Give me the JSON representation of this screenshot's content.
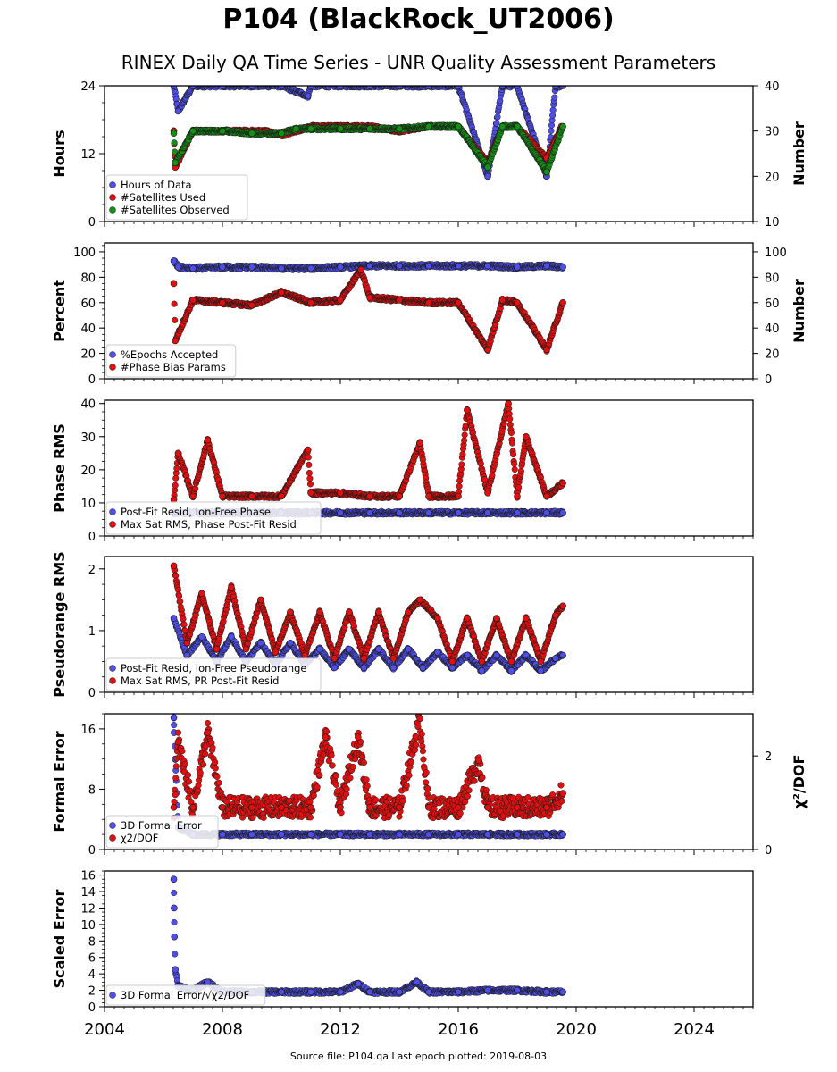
{
  "title": "P104 (BlackRock_UT2006)",
  "subtitle": "RINEX Daily QA Time Series - UNR Quality Assessment Parameters",
  "footer": "Source file: P104.qa Last epoch plotted: 2019-08-03",
  "colors": {
    "blue": "#4f4fe8",
    "red": "#e01010",
    "green": "#149014",
    "edge": "#1a1a1a"
  },
  "chart_data": [
    {
      "type": "scatter",
      "ylabel": "Hours",
      "ylabel_right": "Number",
      "ylim": [
        0,
        24
      ],
      "yticks": [
        0,
        12,
        24
      ],
      "ylim_right": [
        10,
        40
      ],
      "yticks_right": [
        10,
        20,
        30,
        40
      ],
      "xlim": [
        2004,
        2026
      ],
      "xticks": [
        2004,
        2008,
        2012,
        2016,
        2020,
        2024
      ],
      "legend_location": "lower left",
      "series": [
        {
          "name": "Hours of Data",
          "color": "blue",
          "axis": "left",
          "x": [
            2006.35,
            2006.5,
            2007,
            2008,
            2009,
            2010,
            2010.9,
            2011,
            2012,
            2013,
            2014,
            2015,
            2016,
            2017.0,
            2017.5,
            2018,
            2019.0,
            2019.3,
            2019.55
          ],
          "y": [
            24,
            19.5,
            24,
            24,
            24,
            24,
            22.2,
            24,
            24,
            24,
            24,
            24,
            24,
            8,
            24,
            24,
            8,
            24,
            24
          ]
        },
        {
          "name": "#Satellites Used",
          "color": "red",
          "axis": "right",
          "x": [
            2006.35,
            2006.4,
            2007,
            2008,
            2009.5,
            2010,
            2011,
            2012,
            2013,
            2014,
            2015,
            2016,
            2017.0,
            2017.5,
            2018,
            2019.0,
            2019.5
          ],
          "y": [
            30,
            22,
            30,
            30,
            30,
            29,
            31,
            31,
            31,
            30,
            31,
            31,
            23,
            31,
            31,
            24,
            31
          ]
        },
        {
          "name": "#Satellites Observed",
          "color": "green",
          "axis": "right",
          "x": [
            2006.35,
            2006.4,
            2007,
            2008,
            2009,
            2010,
            2010.5,
            2011,
            2012,
            2013,
            2014,
            2015,
            2016,
            2017.0,
            2017.5,
            2018,
            2019.0,
            2019.55
          ],
          "y": [
            29.5,
            23,
            30,
            30,
            29.5,
            29.5,
            30.5,
            30.5,
            30.5,
            30.5,
            30.5,
            31,
            31,
            22,
            31,
            31,
            21,
            31
          ]
        }
      ]
    },
    {
      "type": "scatter",
      "ylabel": "Percent",
      "ylabel_right": "Number",
      "ylim": [
        0,
        107
      ],
      "yticks": [
        0,
        20,
        40,
        60,
        80,
        100
      ],
      "ylim_right": [
        0,
        107
      ],
      "yticks_right": [
        0,
        20,
        40,
        60,
        80,
        100
      ],
      "xlim": [
        2004,
        2026
      ],
      "xticks": [
        2004,
        2008,
        2012,
        2016,
        2020,
        2024
      ],
      "legend_location": "lower left",
      "series": [
        {
          "name": "%Epochs Accepted",
          "color": "blue",
          "axis": "left",
          "x": [
            2006.35,
            2006.5,
            2007,
            2008,
            2009,
            2010,
            2011,
            2012,
            2013,
            2014,
            2015,
            2016,
            2017,
            2018,
            2019,
            2019.55
          ],
          "y": [
            93,
            88,
            87,
            88,
            88,
            87,
            87,
            88,
            89,
            89,
            89,
            89,
            89,
            88,
            89,
            88
          ]
        },
        {
          "name": "#Phase Bias Params",
          "color": "red",
          "axis": "right",
          "x": [
            2006.35,
            2006.4,
            2007,
            2008,
            2009,
            2010,
            2011,
            2012,
            2012.7,
            2013,
            2014,
            2015,
            2016,
            2017.0,
            2017.5,
            2018,
            2019.0,
            2019.55
          ],
          "y": [
            75,
            30,
            62,
            60,
            58,
            68,
            60,
            62,
            86,
            64,
            62,
            60,
            60,
            23,
            62,
            60,
            23,
            60
          ]
        }
      ]
    },
    {
      "type": "scatter",
      "ylabel": "Phase RMS",
      "ylim": [
        0,
        41
      ],
      "yticks": [
        0,
        10,
        20,
        30,
        40
      ],
      "xlim": [
        2004,
        2026
      ],
      "xticks": [
        2004,
        2008,
        2012,
        2016,
        2020,
        2024
      ],
      "legend_location": "lower left",
      "series": [
        {
          "name": "Post-Fit Resid, Ion-Free Phase",
          "color": "blue",
          "x": [
            2006.35,
            2007,
            2008,
            2009,
            2010,
            2011,
            2012,
            2013,
            2014,
            2015,
            2016,
            2017,
            2018,
            2019,
            2019.55
          ],
          "y": [
            7,
            7,
            7,
            7,
            7,
            7,
            7,
            7,
            7,
            7,
            7,
            7,
            7,
            7,
            7
          ]
        },
        {
          "name": "Max Sat RMS, Phase Post-Fit Resid",
          "color": "red",
          "x": [
            2006.35,
            2006.5,
            2007,
            2007.5,
            2008,
            2009,
            2010,
            2010.9,
            2011,
            2012,
            2013,
            2014,
            2014.7,
            2015,
            2016,
            2016.3,
            2017,
            2017.7,
            2018,
            2018.3,
            2019,
            2019.55
          ],
          "y": [
            11,
            25,
            12,
            29,
            12,
            12,
            12,
            26,
            13,
            13,
            12,
            12,
            28,
            12,
            12,
            38,
            13,
            40,
            12,
            30,
            12,
            16
          ]
        }
      ]
    },
    {
      "type": "scatter",
      "ylabel": "Pseudorange RMS",
      "ylim": [
        0,
        2.2
      ],
      "yticks": [
        0,
        1,
        2
      ],
      "xlim": [
        2004,
        2026
      ],
      "xticks": [
        2004,
        2008,
        2012,
        2016,
        2020,
        2024
      ],
      "legend_location": "lower left",
      "series": [
        {
          "name": "Post-Fit Resid, Ion-Free Pseudorange",
          "color": "blue",
          "x": [
            2006.35,
            2006.8,
            2007.3,
            2007.8,
            2008.3,
            2008.8,
            2009.3,
            2009.8,
            2010.3,
            2010.8,
            2011.3,
            2011.8,
            2012.3,
            2012.8,
            2013.3,
            2013.8,
            2014.3,
            2014.8,
            2015.3,
            2015.8,
            2016.3,
            2016.8,
            2017.3,
            2017.8,
            2018.3,
            2018.8,
            2019.3,
            2019.55
          ],
          "y": [
            1.2,
            0.6,
            0.9,
            0.5,
            0.9,
            0.5,
            0.8,
            0.45,
            0.8,
            0.45,
            0.7,
            0.4,
            0.7,
            0.4,
            0.7,
            0.4,
            0.7,
            0.4,
            0.65,
            0.4,
            0.6,
            0.35,
            0.6,
            0.35,
            0.6,
            0.35,
            0.55,
            0.6
          ]
        },
        {
          "name": "Max Sat RMS, PR Post-Fit Resid",
          "color": "red",
          "x": [
            2006.35,
            2006.8,
            2007.3,
            2007.8,
            2008.3,
            2008.8,
            2009.3,
            2009.8,
            2010.3,
            2010.8,
            2011.3,
            2011.8,
            2012.3,
            2012.8,
            2013.3,
            2013.8,
            2014.3,
            2014.7,
            2015.3,
            2015.8,
            2016.3,
            2016.8,
            2017.3,
            2017.8,
            2018.3,
            2018.8,
            2019.3,
            2019.55
          ],
          "y": [
            2.05,
            0.8,
            1.6,
            0.7,
            1.7,
            0.7,
            1.5,
            0.65,
            1.3,
            0.6,
            1.3,
            0.55,
            1.3,
            0.55,
            1.3,
            0.55,
            1.3,
            1.5,
            1.2,
            0.5,
            1.2,
            0.5,
            1.2,
            0.5,
            1.2,
            0.5,
            1.25,
            1.4
          ]
        }
      ]
    },
    {
      "type": "scatter",
      "ylabel": "Formal Error",
      "ylabel_right": "χ²/DOF",
      "ylim": [
        0,
        18
      ],
      "yticks": [
        0,
        8,
        16
      ],
      "ylim_right": [
        0,
        2.9
      ],
      "yticks_right": [
        0,
        2
      ],
      "xlim": [
        2004,
        2026
      ],
      "xticks": [
        2004,
        2008,
        2012,
        2016,
        2020,
        2024
      ],
      "legend_location": "lower left",
      "series": [
        {
          "name": "3D Formal Error",
          "color": "blue",
          "axis": "left",
          "x": [
            2006.35,
            2006.36,
            2006.4,
            2006.5,
            2007,
            2008,
            2009,
            2010,
            2011,
            2012,
            2013,
            2014,
            2015,
            2016,
            2017,
            2018,
            2019,
            2019.55
          ],
          "y": [
            17.5,
            15.5,
            12,
            3,
            2,
            2,
            2,
            2,
            2,
            2,
            2,
            2,
            2,
            2,
            2,
            2,
            2,
            2
          ]
        },
        {
          "name": "χ2/DOF",
          "color": "red",
          "axis": "right",
          "x": [
            2006.35,
            2006.5,
            2007,
            2007.5,
            2008,
            2009,
            2010,
            2011,
            2011.5,
            2012,
            2012.6,
            2013,
            2014,
            2014.7,
            2015,
            2016,
            2016.7,
            2017,
            2018,
            2019,
            2019.55
          ],
          "y": [
            0.9,
            2.3,
            0.9,
            2.5,
            0.9,
            0.9,
            0.9,
            0.9,
            2.4,
            0.9,
            2.4,
            0.9,
            0.9,
            2.8,
            0.9,
            0.9,
            1.9,
            0.9,
            0.9,
            0.9,
            1.2
          ]
        }
      ]
    },
    {
      "type": "scatter",
      "ylabel": "Scaled Error",
      "ylim": [
        0,
        16.5
      ],
      "yticks": [
        0,
        2,
        4,
        6,
        8,
        10,
        12,
        14,
        16
      ],
      "xlim": [
        2004,
        2026
      ],
      "xticks": [
        2004,
        2008,
        2012,
        2016,
        2020,
        2024
      ],
      "legend_location": "lower left",
      "series": [
        {
          "name": "3D Formal Error/√χ2/DOF",
          "color": "blue",
          "x": [
            2006.35,
            2006.36,
            2006.37,
            2006.4,
            2006.5,
            2007,
            2007.5,
            2008,
            2009,
            2010,
            2011,
            2012,
            2012.6,
            2013,
            2014,
            2014.6,
            2015,
            2016,
            2017,
            2018,
            2019,
            2019.55
          ],
          "y": [
            15.5,
            12,
            8.5,
            4.5,
            2.5,
            2,
            3,
            1.8,
            1.8,
            1.8,
            1.8,
            1.8,
            2.8,
            1.8,
            1.8,
            3,
            1.8,
            1.8,
            2,
            2,
            1.8,
            1.8
          ]
        }
      ]
    }
  ]
}
